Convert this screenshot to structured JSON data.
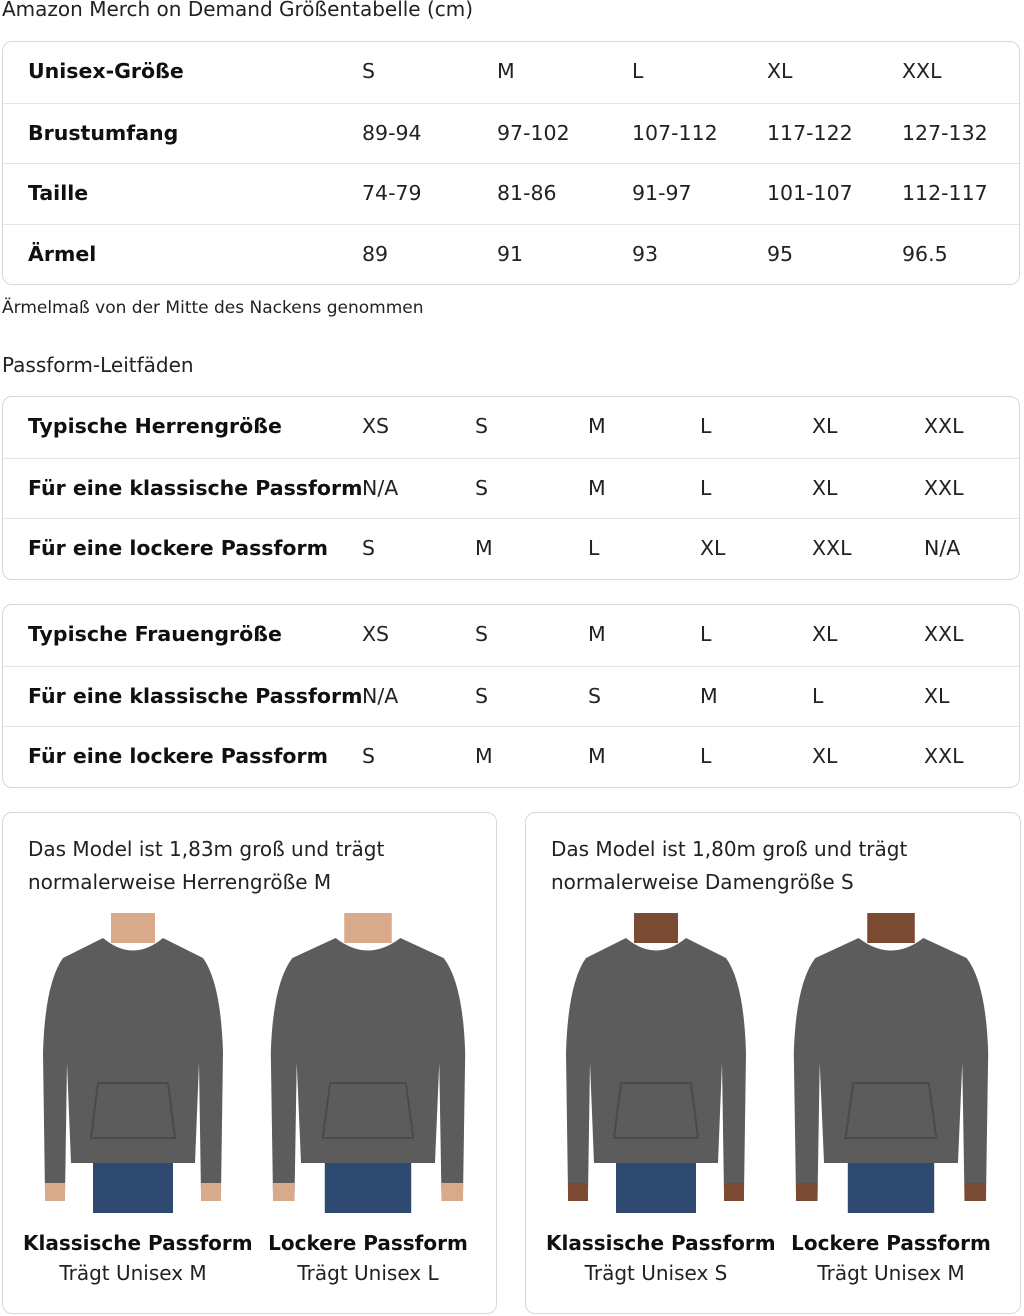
{
  "title": "Amazon Merch on Demand Größentabelle (cm)",
  "size_table": {
    "rows": [
      {
        "label": "Unisex-Größe",
        "values": [
          "S",
          "M",
          "L",
          "XL",
          "XXL"
        ]
      },
      {
        "label": "Brustumfang",
        "values": [
          "89-94",
          "97-102",
          "107-112",
          "117-122",
          "127-132"
        ]
      },
      {
        "label": "Taille",
        "values": [
          "74-79",
          "81-86",
          "91-97",
          "101-107",
          "112-117"
        ]
      },
      {
        "label": "Ärmel",
        "values": [
          "89",
          "91",
          "93",
          "95",
          "96.5"
        ]
      }
    ]
  },
  "sleeve_note": "Ärmelmaß von der Mitte des Nackens genommen",
  "fit_guide_title": "Passform-Leitfäden",
  "men_table": {
    "rows": [
      {
        "label": "Typische Herrengröße",
        "values": [
          "XS",
          "S",
          "M",
          "L",
          "XL",
          "XXL"
        ]
      },
      {
        "label": "Für eine klassische Passform",
        "values": [
          "N/A",
          "S",
          "M",
          "L",
          "XL",
          "XXL"
        ]
      },
      {
        "label": "Für eine lockere Passform",
        "values": [
          "S",
          "M",
          "L",
          "XL",
          "XXL",
          "N/A"
        ]
      }
    ]
  },
  "women_table": {
    "rows": [
      {
        "label": "Typische Frauengröße",
        "values": [
          "XS",
          "S",
          "M",
          "L",
          "XL",
          "XXL"
        ]
      },
      {
        "label": "Für eine klassische Passform",
        "values": [
          "N/A",
          "S",
          "S",
          "M",
          "L",
          "XL"
        ]
      },
      {
        "label": "Für eine lockere Passform",
        "values": [
          "S",
          "M",
          "M",
          "L",
          "XL",
          "XXL"
        ]
      }
    ]
  },
  "model_cards": [
    {
      "caption": "Das Model ist 1,83m groß und trägt normalerweise Herrengröße M",
      "figures": [
        {
          "title": "Klassische Passform",
          "subtitle": "Trägt Unisex M",
          "image": "male-model-hoodie-classic"
        },
        {
          "title": "Lockere Passform",
          "subtitle": "Trägt Unisex L",
          "image": "male-model-hoodie-relaxed"
        }
      ]
    },
    {
      "caption": "Das Model ist 1,80m groß und trägt normalerweise Damengröße S",
      "figures": [
        {
          "title": "Klassische Passform",
          "subtitle": "Trägt Unisex S",
          "image": "female-model-hoodie-classic"
        },
        {
          "title": "Lockere Passform",
          "subtitle": "Trägt Unisex M",
          "image": "female-model-hoodie-relaxed"
        }
      ]
    }
  ],
  "colors": {
    "hoodie": "#5c5c5c",
    "jeans": "#2f4a70",
    "border": "#d5d9d9"
  }
}
